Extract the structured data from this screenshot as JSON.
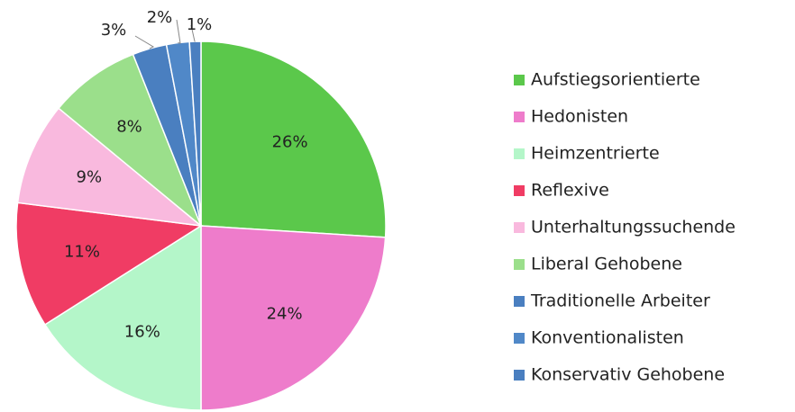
{
  "chart_data": {
    "type": "pie",
    "categories": [
      "Aufstiegsorientierte",
      "Hedonisten",
      "Heimzentrierte",
      "Reflexive",
      "Unterhaltungssuchende",
      "Liberal Gehobene",
      "Traditionelle Arbeiter",
      "Konventionalisten",
      "Konservativ Gehobene"
    ],
    "values": [
      26,
      24,
      16,
      11,
      9,
      8,
      3,
      2,
      1
    ],
    "value_labels": [
      "26%",
      "24%",
      "16%",
      "11%",
      "9%",
      "8%",
      "3%",
      "2%",
      "1%"
    ],
    "colors": [
      "#5bc84b",
      "#ee7ccb",
      "#b4f6c9",
      "#f03c64",
      "#f9b9de",
      "#9bdf8b",
      "#4a7fc0",
      "#5088c8",
      "#4a7fc0"
    ],
    "legend": "right"
  }
}
